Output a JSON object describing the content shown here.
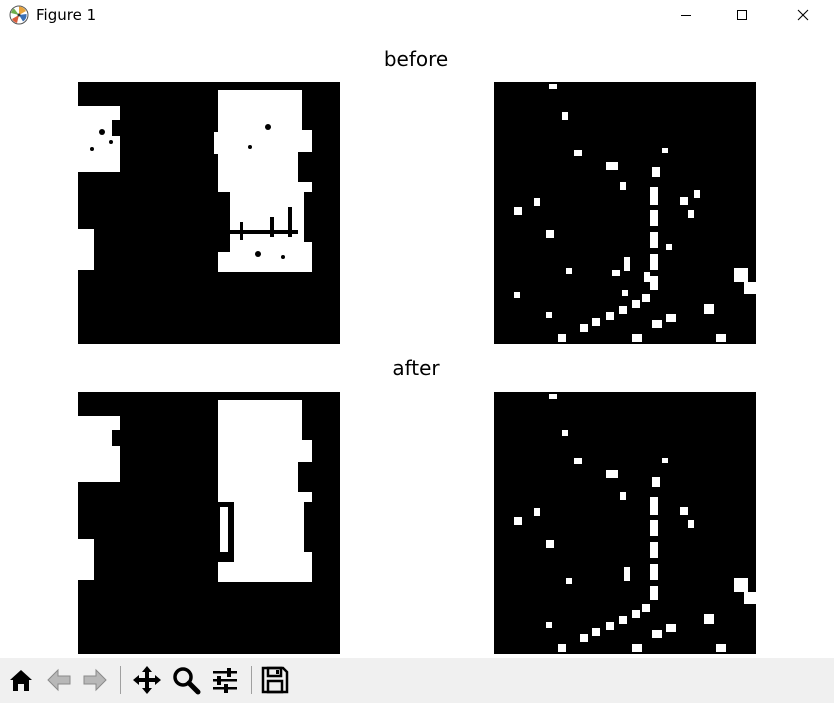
{
  "window": {
    "title": "Figure 1",
    "controls": [
      "minimize",
      "maximize",
      "close"
    ]
  },
  "figure": {
    "rows": [
      {
        "title": "before"
      },
      {
        "title": "after"
      }
    ],
    "panels_per_row": 2,
    "colormap": "binary (black background, white foreground)"
  },
  "toolbar": {
    "buttons": [
      {
        "name": "home-icon"
      },
      {
        "name": "back-arrow-icon"
      },
      {
        "name": "forward-arrow-icon"
      },
      {
        "name": "pan-icon"
      },
      {
        "name": "zoom-icon"
      },
      {
        "name": "configure-subplots-icon"
      },
      {
        "name": "save-icon"
      }
    ]
  },
  "colors": {
    "titlebar_bg": "#ffffff",
    "toolbar_bg": "#f0f0f0",
    "panel_bg": "#000000",
    "mask_fg": "#ffffff"
  }
}
